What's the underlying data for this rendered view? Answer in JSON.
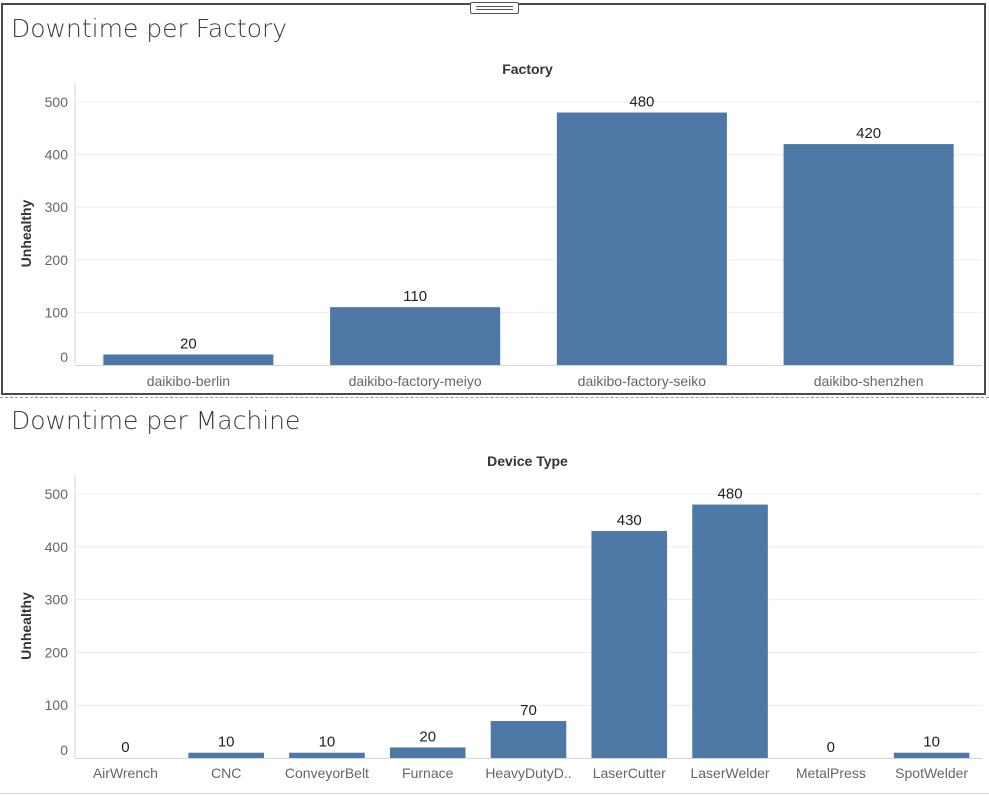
{
  "panels": [
    {
      "title": "Downtime per Factory",
      "chart_data": {
        "type": "bar",
        "title": "Downtime per Factory",
        "column_header": "Factory",
        "ylabel": "Unhealthy",
        "xlabel": "",
        "categories": [
          "daikibo-berlin",
          "daikibo-factory-meiyo",
          "daikibo-factory-seiko",
          "daikibo-shenzhen"
        ],
        "values": [
          20,
          110,
          480,
          420
        ],
        "yticks": [
          0,
          100,
          200,
          300,
          400,
          500
        ],
        "ylim": [
          0,
          500
        ],
        "grid": true,
        "bar_color": "#4e79a7",
        "data_labels": true
      }
    },
    {
      "title": "Downtime per Machine",
      "chart_data": {
        "type": "bar",
        "title": "Downtime per Machine",
        "column_header": "Device Type",
        "ylabel": "Unhealthy",
        "xlabel": "",
        "categories": [
          "AirWrench",
          "CNC",
          "ConveyorBelt",
          "Furnace",
          "HeavyDutyD..",
          "LaserCutter",
          "LaserWelder",
          "MetalPress",
          "SpotWelder"
        ],
        "values": [
          0,
          10,
          10,
          20,
          70,
          430,
          480,
          0,
          10
        ],
        "yticks": [
          0,
          100,
          200,
          300,
          400,
          500
        ],
        "ylim": [
          0,
          500
        ],
        "grid": true,
        "bar_color": "#4e79a7",
        "data_labels": true
      }
    }
  ]
}
